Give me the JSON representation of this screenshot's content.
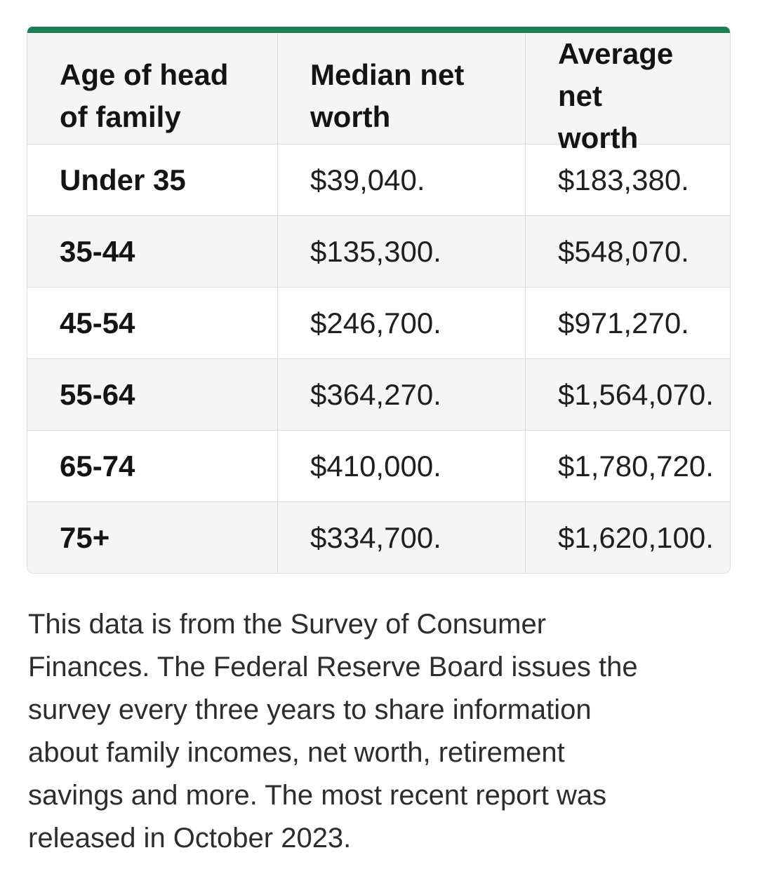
{
  "colors": {
    "accent_green": "#1E7D55",
    "row_stripe": "#f5f5f5",
    "border": "#dcdcdc"
  },
  "table": {
    "header": [
      {
        "line1": "Age of head",
        "line2": "of family"
      },
      {
        "line1": "Median net",
        "line2": "worth"
      },
      {
        "line1": "Average net",
        "line2": "worth"
      }
    ],
    "rows": [
      {
        "age": "Under 35",
        "median": "$39,040.",
        "average": "$183,380."
      },
      {
        "age": "35-44",
        "median": "$135,300.",
        "average": "$548,070."
      },
      {
        "age": "45-54",
        "median": "$246,700.",
        "average": "$971,270."
      },
      {
        "age": "55-64",
        "median": "$364,270.",
        "average": "$1,564,070."
      },
      {
        "age": "65-74",
        "median": "$410,000.",
        "average": "$1,780,720."
      },
      {
        "age": "75+",
        "median": "$334,700.",
        "average": "$1,620,100."
      }
    ]
  },
  "source_note": {
    "full_text": "This data is from the Survey of Consumer Finances. The Federal Reserve Board issues the survey every three years to share information about family incomes, net worth, retirement savings and more. The most recent report was released in October 2023.",
    "lines": [
      "This data is from the Survey of Consumer",
      "Finances. The Federal Reserve Board issues the",
      "survey every three years to share information",
      "about family incomes, net worth, retirement",
      "savings and more. The most recent report was",
      "released in October 2023."
    ]
  },
  "chart_data": {
    "type": "table",
    "title": "",
    "columns": [
      "Age of head of family",
      "Median net worth",
      "Average net worth"
    ],
    "rows": [
      [
        "Under 35",
        "$39,040.",
        "$183,380."
      ],
      [
        "35-44",
        "$135,300.",
        "$548,070."
      ],
      [
        "45-54",
        "$246,700.",
        "$971,270."
      ],
      [
        "55-64",
        "$364,270.",
        "$1,564,070."
      ],
      [
        "65-74",
        "$410,000.",
        "$1,780,720."
      ],
      [
        "75+",
        "$334,700.",
        "$1,620,100."
      ]
    ],
    "categories": [
      "Under 35",
      "35-44",
      "45-54",
      "55-64",
      "65-74",
      "75+"
    ],
    "series": [
      {
        "name": "Median net worth",
        "values": [
          39040,
          135300,
          246700,
          364270,
          410000,
          334700
        ]
      },
      {
        "name": "Average net worth",
        "values": [
          183380,
          548070,
          971270,
          1564070,
          1780720,
          1620100
        ]
      }
    ]
  }
}
